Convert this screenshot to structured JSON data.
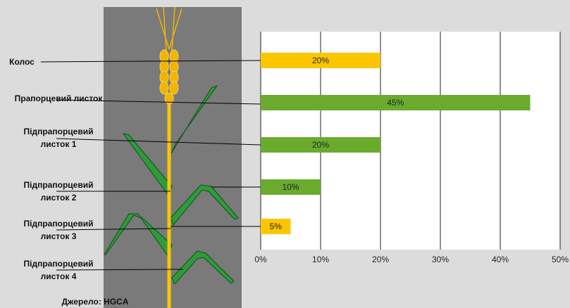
{
  "chart_data": {
    "type": "bar",
    "orientation": "horizontal",
    "categories": [
      "Колос",
      "Прапорцевий листок",
      "Підпрапорцевий листок 1",
      "Підпрапорцевий листок 2",
      "Підпрапорцевий листок 3"
    ],
    "values": [
      20,
      45,
      20,
      10,
      5
    ],
    "value_labels": [
      "20%",
      "45%",
      "20%",
      "10%",
      "5%"
    ],
    "colors": [
      "#fbc600",
      "#6aab2e",
      "#6aab2e",
      "#6aab2e",
      "#fbc600"
    ],
    "xlim": [
      0,
      50
    ],
    "xticks": [
      {
        "value": 0,
        "label": "0%"
      },
      {
        "value": 10,
        "label": "10%"
      },
      {
        "value": 20,
        "label": "20%"
      },
      {
        "value": 30,
        "label": "30%"
      },
      {
        "value": 40,
        "label": "40%"
      },
      {
        "value": 50,
        "label": "50%"
      }
    ],
    "grid": true,
    "annotations": [
      "Підпрапорцевий листок 4"
    ],
    "source": "Джерело: HGCA"
  }
}
